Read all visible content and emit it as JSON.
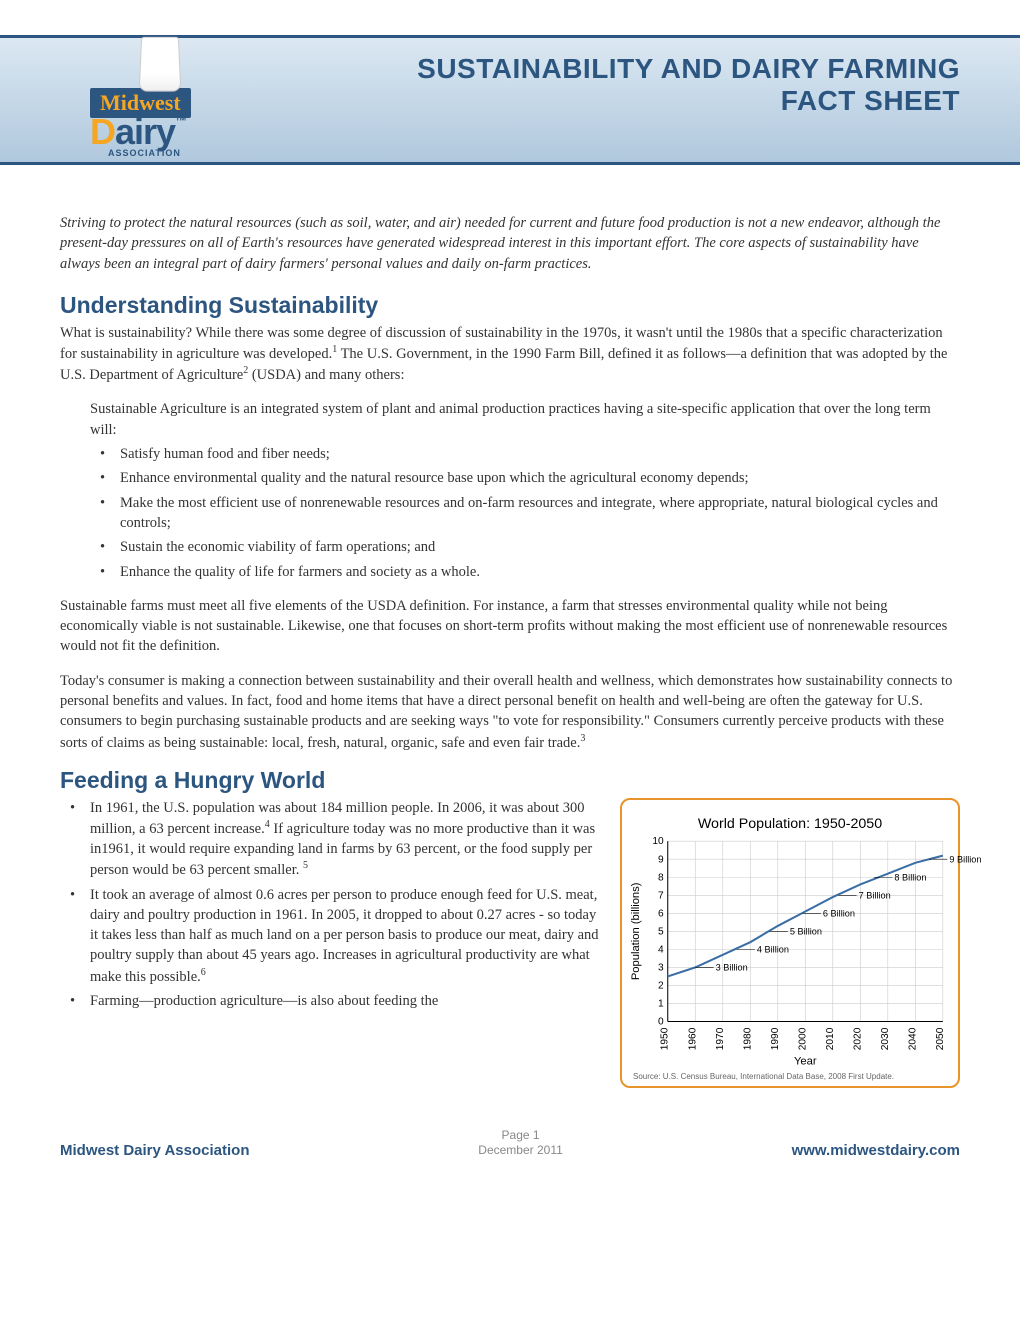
{
  "header": {
    "title_line1": "SUSTAINABILITY AND DAIRY FARMING",
    "title_line2": "FACT SHEET",
    "banner_colors": {
      "top": "#dce8f2",
      "mid": "#c5d8e8",
      "bottom": "#b0c8dd",
      "border": "#2c5580"
    }
  },
  "logo": {
    "midwest": "Midwest",
    "dairy": "Dairy",
    "assoc": "ASSOCIATION",
    "accent_color": "#f5a623",
    "primary_color": "#2c5580"
  },
  "intro": "Striving to protect the natural resources (such as soil, water, and air) needed for current and future food production is not a new endeavor, although the present-day pressures on all of Earth's resources have generated widespread interest in this important effort. The core aspects of sustainability have always been an integral part of dairy farmers' personal values and daily on-farm practices.",
  "section1": {
    "heading": "Understanding Sustainability",
    "p1a": "What is sustainability? While there was some degree of discussion of sustainability in the 1970s, it wasn't until the 1980s that a specific characterization for sustainability in agriculture was developed.",
    "p1b": "  The U.S. Government, in the 1990 Farm Bill, defined it as follows—a definition that was adopted by the U.S. Department of Agriculture",
    "p1c": "  (USDA) and many others:",
    "def_intro": "Sustainable Agriculture is an integrated system of plant and animal production practices having a site-specific application that over the long term will:",
    "bullets": [
      "Satisfy human food and fiber needs;",
      "Enhance environmental quality and the natural resource base upon which the agricultural economy depends;",
      "Make the most efficient use of nonrenewable resources and on-farm resources and integrate, where appropriate, natural biological cycles and controls;",
      "Sustain the economic viability of farm operations; and",
      "Enhance the quality of life for farmers and society as a whole."
    ],
    "p2": "Sustainable farms must meet all five elements of the USDA definition. For instance, a farm that stresses environmental quality while not being economically viable is not sustainable. Likewise, one that focuses on short-term profits without making the most efficient use of nonrenewable resources would not fit the definition.",
    "p3a": "Today's consumer is making a connection between sustainability and their overall health and wellness, which demonstrates how sustainability connects to personal benefits and values. In fact, food and home items that have a direct personal benefit on health and well-being are often the gateway for U.S. consumers to begin purchasing sustainable products and are seeking ways \"to vote for responsibility.\" Consumers currently perceive products with these sorts of claims as being sustainable: local, fresh, natural, organic, safe and even fair trade."
  },
  "section2": {
    "heading": "Feeding a Hungry World",
    "bullets": [
      {
        "a": "In 1961, the U.S. population was about 184 million people. In 2006, it was about 300 million, a 63 percent increase.",
        "sup": "4",
        "b": "  If agriculture today was no more productive than it was in1961, it would require expanding land in farms by 63 percent, or the food supply per person would be 63 percent smaller. ",
        "sup2": "5"
      },
      {
        "a": "It took an average of almost 0.6 acres per person to produce enough feed for U.S. meat, dairy and poultry production in 1961. In 2005, it dropped to about 0.27 acres - so today it takes less than half as much land on a per person basis to produce our meat, dairy and poultry supply than about 45 years ago. Increases in agricultural productivity are what make this possible.",
        "sup": "6",
        "b": ""
      },
      {
        "a": "Farming—production agriculture—is also about feeding the",
        "sup": "",
        "b": ""
      }
    ]
  },
  "chart": {
    "type": "line",
    "title": "World Population: 1950-2050",
    "title_fontsize": 14,
    "xlabel": "Year",
    "ylabel": "Population (billions)",
    "label_fontsize": 11,
    "tick_fontsize": 10,
    "years": [
      1950,
      1960,
      1970,
      1980,
      1990,
      2000,
      2010,
      2020,
      2030,
      2040,
      2050
    ],
    "values": [
      2.5,
      3.0,
      3.7,
      4.4,
      5.3,
      6.1,
      6.9,
      7.6,
      8.2,
      8.8,
      9.2
    ],
    "ylim": [
      0,
      10
    ],
    "ytick_step": 1,
    "callouts": [
      {
        "year": 1960,
        "value": 3.0,
        "label": "3 Billion"
      },
      {
        "year": 1975,
        "value": 4.0,
        "label": "4 Billion"
      },
      {
        "year": 1987,
        "value": 5.0,
        "label": "5 Billion"
      },
      {
        "year": 1999,
        "value": 6.0,
        "label": "6 Billion"
      },
      {
        "year": 2012,
        "value": 7.0,
        "label": "7 Billion"
      },
      {
        "year": 2025,
        "value": 8.0,
        "label": "8 Billion"
      },
      {
        "year": 2045,
        "value": 9.0,
        "label": "9 Billion"
      }
    ],
    "line_color": "#3a6ea5",
    "line_width": 2,
    "grid_color": "#cccccc",
    "background_color": "#ffffff",
    "axis_color": "#000000",
    "source": "Source: U.S. Census Bureau, International Data Base, 2008 First Update.",
    "border_color": "#e8942a"
  },
  "footer": {
    "left": "Midwest Dairy Association",
    "page": "Page 1",
    "date": "December 2011",
    "right": "www.midwestdairy.com"
  }
}
